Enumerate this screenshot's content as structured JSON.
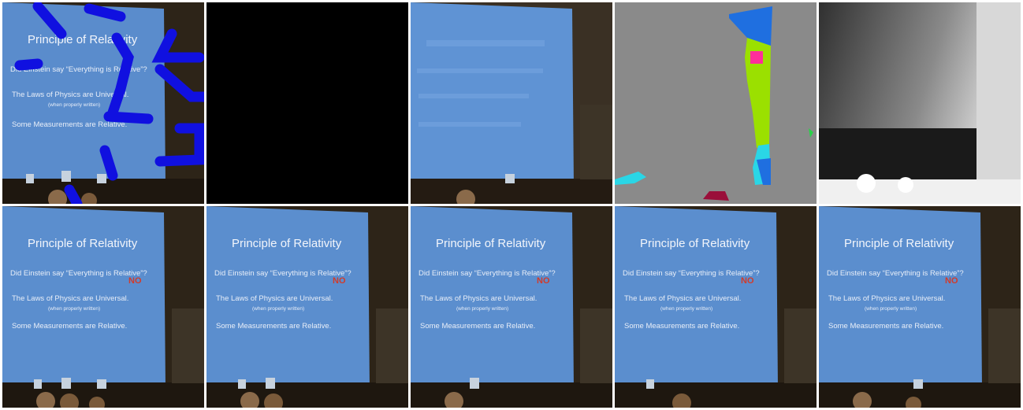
{
  "slide": {
    "title": "Principle of Relativity",
    "bullet1": "Did Einstein say “Everything is Relative”?",
    "answer": "NO",
    "bullet2": "The Laws of Physics are Universal.",
    "subnote": "(when properly written)",
    "bullet3": "Some Measurements are Relative."
  },
  "panels": [
    {
      "kind": "masked-input"
    },
    {
      "kind": "black-mask"
    },
    {
      "kind": "blurred-fill"
    },
    {
      "kind": "segmentation"
    },
    {
      "kind": "depth-map"
    },
    {
      "kind": "result-clean"
    },
    {
      "kind": "result-a"
    },
    {
      "kind": "result-b"
    },
    {
      "kind": "result-c"
    },
    {
      "kind": "result-d"
    }
  ],
  "colors": {
    "screen": "#5f8fd0",
    "screen_light": "#7aa6dc",
    "room": "#2d2418",
    "mask_stroke": "#1010e0",
    "seg_bg": "#8a8a8a",
    "seg_blue": "#1f6fe0",
    "seg_green": "#9be000",
    "seg_pink": "#ff2e9a",
    "seg_cyan": "#2ad6e6",
    "seg_maroon": "#9a0f3a"
  }
}
